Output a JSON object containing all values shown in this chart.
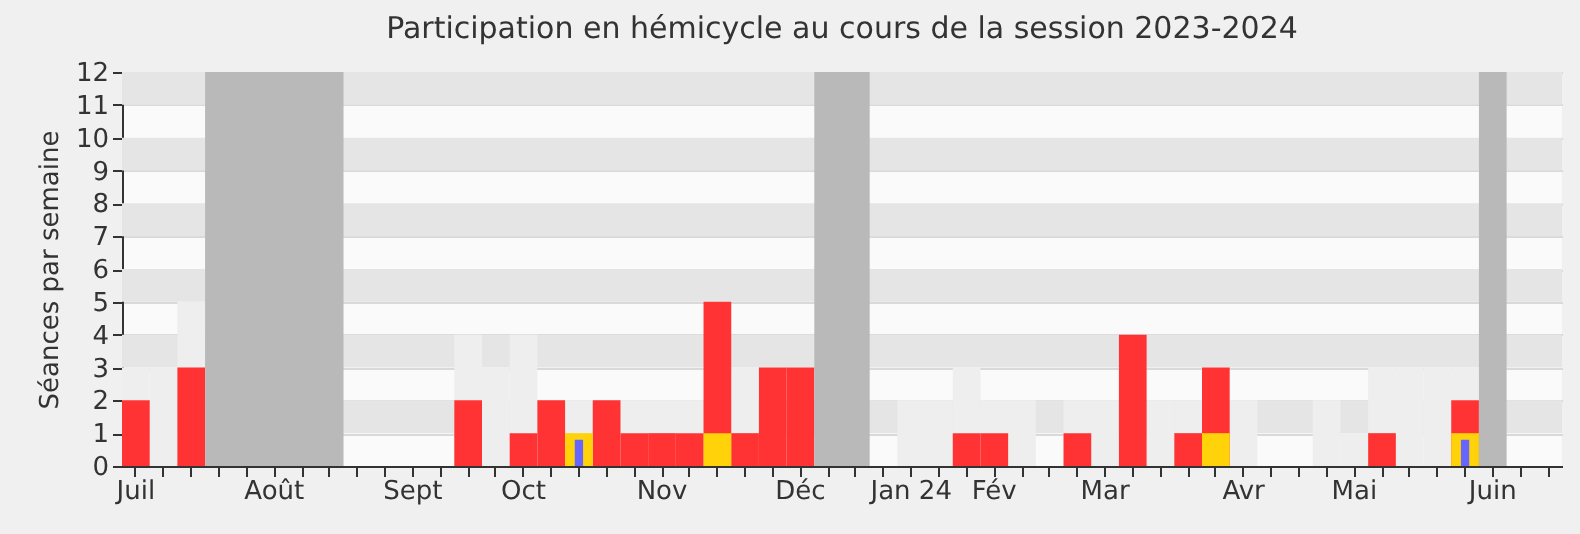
{
  "chart_data": {
    "type": "bar",
    "title": "Participation en hémicycle au cours de la session 2023-2024",
    "ylabel": "Séances par semaine",
    "categories": [
      "Juil",
      null,
      null,
      null,
      null,
      "Août",
      null,
      null,
      null,
      null,
      "Sept",
      null,
      null,
      null,
      "Oct",
      null,
      null,
      null,
      null,
      "Nov",
      null,
      null,
      null,
      null,
      "Déc",
      null,
      null,
      null,
      "Jan 24",
      null,
      null,
      "Fév",
      null,
      null,
      null,
      "Mar",
      null,
      null,
      null,
      null,
      "Avr",
      null,
      null,
      null,
      "Mai",
      null,
      null,
      null,
      null,
      "Juin",
      null,
      null
    ],
    "series": [
      {
        "color": "#eeeeee",
        "values": [
          3,
          3,
          5,
          null,
          null,
          null,
          null,
          null,
          null,
          null,
          null,
          null,
          4,
          3,
          4,
          null,
          2,
          null,
          2,
          2,
          2,
          null,
          3,
          null,
          null,
          null,
          null,
          null,
          2,
          2,
          3,
          2,
          2,
          null,
          2,
          2,
          null,
          2,
          2,
          null,
          2,
          null,
          null,
          2,
          1,
          3,
          3,
          3,
          3,
          null,
          null,
          null
        ]
      },
      {
        "color": "#ff3333",
        "values": [
          2,
          null,
          3,
          null,
          null,
          null,
          null,
          null,
          null,
          null,
          null,
          null,
          2,
          null,
          1,
          2,
          null,
          2,
          1,
          1,
          1,
          5,
          1,
          3,
          3,
          null,
          null,
          null,
          null,
          null,
          1,
          1,
          null,
          null,
          1,
          null,
          4,
          null,
          1,
          3,
          null,
          null,
          null,
          null,
          null,
          1,
          null,
          null,
          2,
          null,
          null,
          null
        ]
      },
      {
        "color": "#ffd20a",
        "values": [
          null,
          null,
          null,
          null,
          null,
          null,
          null,
          null,
          null,
          null,
          null,
          null,
          null,
          null,
          null,
          null,
          1,
          null,
          null,
          null,
          null,
          1,
          null,
          null,
          null,
          null,
          null,
          null,
          null,
          null,
          null,
          null,
          null,
          null,
          null,
          null,
          null,
          null,
          null,
          1,
          null,
          null,
          null,
          null,
          null,
          null,
          null,
          null,
          1,
          null,
          null,
          null
        ]
      },
      {
        "color": "#6666ff",
        "values": [
          null,
          null,
          null,
          null,
          null,
          null,
          null,
          null,
          null,
          null,
          null,
          null,
          null,
          null,
          null,
          null,
          0.8,
          null,
          null,
          null,
          null,
          null,
          null,
          null,
          null,
          null,
          null,
          null,
          null,
          null,
          null,
          null,
          null,
          null,
          null,
          null,
          null,
          null,
          null,
          null,
          null,
          null,
          null,
          null,
          null,
          null,
          null,
          null,
          0.8,
          null,
          null,
          null
        ]
      }
    ],
    "ylim": [
      0,
      12
    ],
    "yticks": [
      0,
      1,
      2,
      3,
      4,
      5,
      6,
      7,
      8,
      9,
      10,
      11,
      12
    ],
    "grid": "y"
  }
}
